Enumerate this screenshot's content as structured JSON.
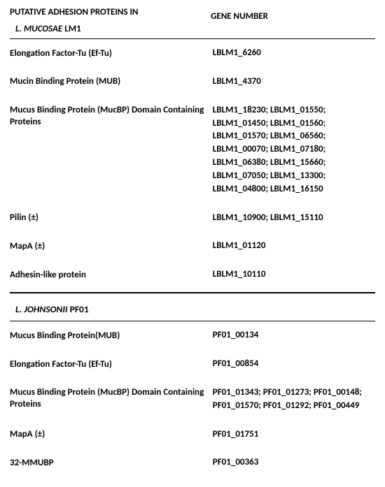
{
  "header": {
    "left_line1": "PUTATIVE ADHESION PROTEINS IN",
    "left_line2_prefix": "L. MUCOSAE",
    "left_line2_suffix": " LM1",
    "right": "GENE NUMBER"
  },
  "section1": {
    "rows": [
      {
        "label": "Elongation Factor-Tu (Ef-Tu)",
        "value": "LBLM1_6260"
      },
      {
        "label": "Mucin Binding Protein (MUB)",
        "value": "LBLM1_4370"
      },
      {
        "label": "Mucus Binding Protein (MucBP)      Domain Containing Proteins",
        "value": "LBLM1_18230; LBLM1_01550; LBLM1_01450; LBLM1_01560; LBLM1_01570; LBLM1_06560; LBLM1_00070; LBLM1_07180; LBLM1_06380; LBLM1_15660; LBLM1_07050; LBLM1_13300; LBLM1_04800; LBLM1_16150"
      },
      {
        "label": "Pilin (±)",
        "value": "LBLM1_10900; LBLM1_15110"
      },
      {
        "label": "MapA    (±)",
        "value": "LBLM1_01120"
      },
      {
        "label": "Adhesin-like protein",
        "value": "LBLM1_10110"
      }
    ]
  },
  "section2": {
    "title_italic": "L. JOHNSONII",
    "title_suffix": " PF01",
    "rows": [
      {
        "label": "Mucus Binding Protein(MUB)",
        "value": "PF01_00134"
      },
      {
        "label": "Elongation Factor-Tu (Ef-Tu)",
        "value": "PF01_00854"
      },
      {
        "label": "Mucus Binding Protein (MucBP) Domain Containing Proteins",
        "value": "PF01_01343; PF01_01273; PF01_00148; PF01_01570; PF01_01292; PF01_00449"
      },
      {
        "label": "MapA    (±)",
        "value": "PF01_01751"
      },
      {
        "label": "32-MMUBP",
        "value": "PF01_00363"
      }
    ]
  }
}
